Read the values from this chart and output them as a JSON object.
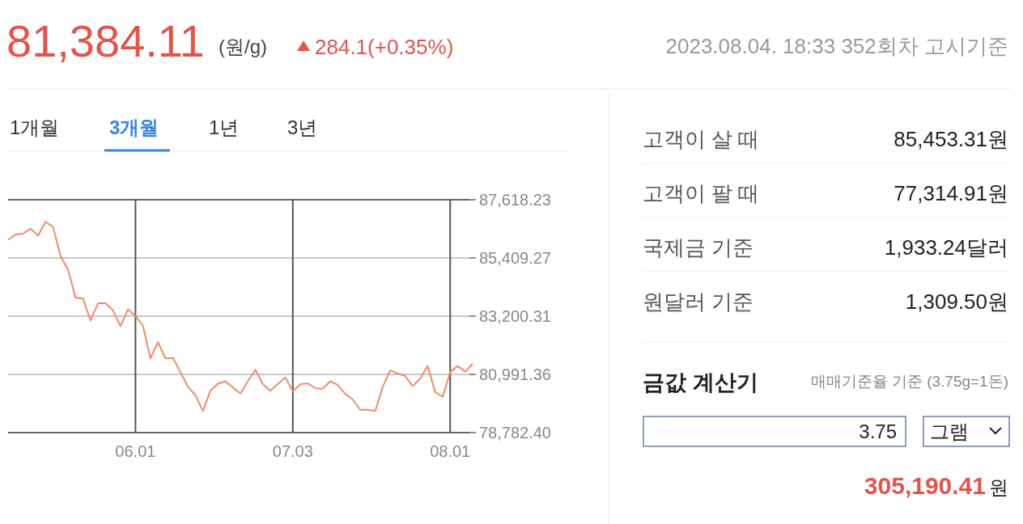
{
  "chart_data": [
    {
      "type": "line",
      "title": "81,384.11",
      "subtitle": "(원/g)",
      "annotations": [
        "284.1(+0.35%)",
        "2023.08.04. 18:33 352회차 고시기준",
        "1개월",
        "3개월",
        "1년",
        "3년"
      ],
      "categories": [
        null,
        null,
        null,
        null,
        null,
        null,
        null,
        null,
        null,
        null,
        null,
        null,
        null,
        null,
        null,
        null,
        null,
        "06.01",
        null,
        null,
        null,
        null,
        null,
        null,
        null,
        null,
        null,
        null,
        null,
        null,
        null,
        null,
        null,
        null,
        null,
        null,
        null,
        null,
        "07.03",
        null,
        null,
        null,
        null,
        null,
        null,
        null,
        null,
        null,
        null,
        null,
        null,
        null,
        null,
        null,
        null,
        null,
        null,
        null,
        null,
        "08.01",
        null,
        null,
        null
      ],
      "series": [
        {
          "color": "#f08a6c",
          "values": [
            86100,
            86300,
            86330,
            86520,
            86250,
            86780,
            86590,
            85480,
            84970,
            83900,
            83870,
            83030,
            83690,
            83690,
            83420,
            82820,
            83460,
            83210,
            82840,
            81600,
            82210,
            81600,
            81620,
            81080,
            80520,
            80210,
            79600,
            80370,
            80640,
            80730,
            80490,
            80270,
            80730,
            81170,
            80620,
            80370,
            80620,
            80880,
            80350,
            80620,
            80650,
            80470,
            80450,
            80730,
            80590,
            80250,
            80040,
            79650,
            79650,
            79600,
            80520,
            81140,
            81030,
            80930,
            80550,
            80830,
            81310,
            80320,
            80140,
            81080,
            81310,
            81100,
            81390
          ]
        }
      ],
      "ylim": [
        78782.4,
        87618.23
      ],
      "yticks": [
        {
          "value": 78782.4,
          "label": "78,782.40"
        },
        {
          "value": 80991.36,
          "label": "80,991.36"
        },
        {
          "value": 83200.31,
          "label": "83,200.31"
        },
        {
          "value": 85409.27,
          "label": "85,409.27"
        },
        {
          "value": 87618.23,
          "label": "87,618.23"
        }
      ],
      "grid": true,
      "marker": "none",
      "line_style": "solid"
    },
    {
      "type": "other",
      "annotations": [
        "고객이 살 때",
        "85,453.31원",
        "고객이 팔 때",
        "77,314.91원",
        "국제금 기준",
        "1,933.24달러",
        "원달러 기준",
        "1,309.50원",
        "금값 계산기",
        "매매기준율 기준 (3.75g=1돈)",
        "3.75",
        "그램",
        "305,190.41",
        "원"
      ]
    }
  ]
}
